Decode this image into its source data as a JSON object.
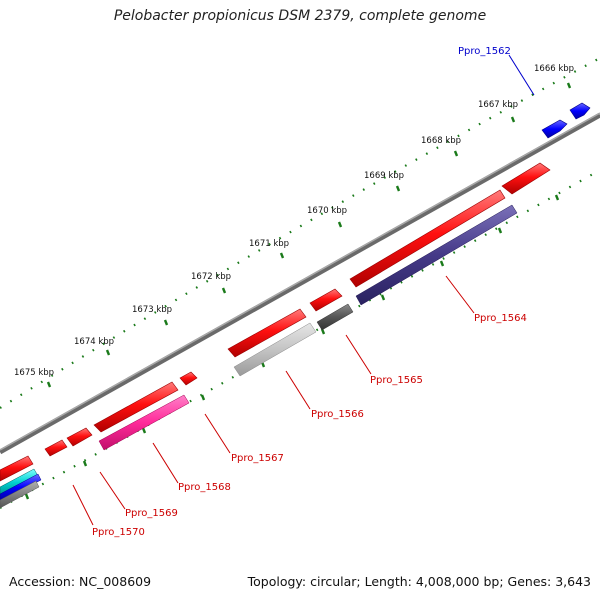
{
  "title": "Pelobacter propionicus DSM 2379, complete genome",
  "footer": {
    "accession": "Accession: NC_008609",
    "topology": "Topology: circular; Length: 4,008,000 bp; Genes: 3,643"
  },
  "ticks": [
    "1666 kbp",
    "1667 kbp",
    "1668 kbp",
    "1669 kbp",
    "1670 kbp",
    "1671 kbp",
    "1672 kbp",
    "1673 kbp",
    "1674 kbp",
    "1675 kbp"
  ],
  "genes": [
    {
      "label": "Ppro_1562",
      "color": "#0000cc"
    },
    {
      "label": "Ppro_1564",
      "color": "#cc0000"
    },
    {
      "label": "Ppro_1565",
      "color": "#cc0000"
    },
    {
      "label": "Ppro_1566",
      "color": "#cc0000"
    },
    {
      "label": "Ppro_1567",
      "color": "#cc0000"
    },
    {
      "label": "Ppro_1568",
      "color": "#cc0000"
    },
    {
      "label": "Ppro_1569",
      "color": "#cc0000"
    },
    {
      "label": "Ppro_1570",
      "color": "#cc0000"
    }
  ],
  "colors": {
    "backbone": "#808080",
    "dotted_ring": "#1a7a1a",
    "cds_forward": "#ff0000",
    "cds_blue": "#0000ff",
    "track_purple": "#4a3f8c",
    "track_darkgray": "#505050",
    "track_lightgray": "#c0c0c0",
    "track_pink": "#ff3399",
    "track_cyan": "#00cccc"
  }
}
